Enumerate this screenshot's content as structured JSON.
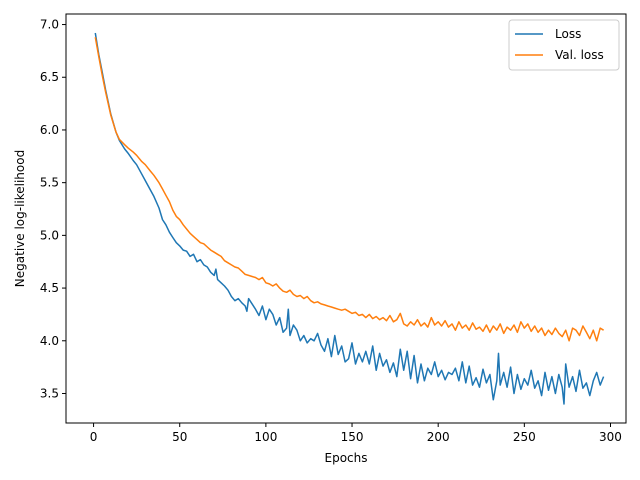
{
  "chart_data": {
    "type": "line",
    "title": "",
    "xlabel": "Epochs",
    "ylabel": "Negative log-likelihood",
    "xlim": [
      -16,
      309
    ],
    "ylim": [
      3.22,
      7.1
    ],
    "xticks": [
      0,
      50,
      100,
      150,
      200,
      250,
      300
    ],
    "yticks": [
      3.5,
      4.0,
      4.5,
      5.0,
      5.5,
      6.0,
      6.5,
      7.0
    ],
    "xtick_labels": [
      "0",
      "50",
      "100",
      "150",
      "200",
      "250",
      "300"
    ],
    "ytick_labels": [
      "3.5",
      "4.0",
      "4.5",
      "5.0",
      "5.5",
      "6.0",
      "6.5",
      "7.0"
    ],
    "grid": false,
    "legend_position": "top-right",
    "series": [
      {
        "name": "Loss",
        "color": "#1f77b4",
        "x": [
          1,
          3,
          5,
          7,
          10,
          13,
          15,
          18,
          20,
          23,
          25,
          28,
          30,
          33,
          35,
          38,
          40,
          42,
          44,
          46,
          48,
          50,
          52,
          54,
          56,
          58,
          60,
          62,
          64,
          66,
          68,
          70,
          71,
          72,
          74,
          76,
          78,
          80,
          82,
          84,
          86,
          88,
          89,
          90,
          92,
          94,
          96,
          98,
          100,
          102,
          104,
          106,
          108,
          110,
          112,
          113,
          114,
          116,
          118,
          120,
          122,
          124,
          126,
          128,
          130,
          132,
          134,
          136,
          138,
          140,
          142,
          144,
          146,
          148,
          150,
          152,
          154,
          156,
          158,
          160,
          162,
          164,
          166,
          168,
          170,
          172,
          174,
          176,
          178,
          180,
          182,
          184,
          186,
          188,
          190,
          192,
          194,
          196,
          198,
          200,
          202,
          204,
          206,
          208,
          210,
          212,
          214,
          216,
          218,
          220,
          222,
          224,
          226,
          228,
          230,
          232,
          234,
          235,
          236,
          238,
          240,
          242,
          244,
          246,
          248,
          250,
          252,
          254,
          256,
          258,
          260,
          262,
          264,
          266,
          268,
          270,
          272,
          273,
          274,
          276,
          278,
          280,
          282,
          284,
          286,
          288,
          290,
          292,
          294,
          296
        ],
        "values": [
          6.92,
          6.72,
          6.55,
          6.38,
          6.15,
          5.98,
          5.9,
          5.82,
          5.78,
          5.71,
          5.67,
          5.58,
          5.52,
          5.43,
          5.37,
          5.26,
          5.15,
          5.1,
          5.03,
          4.98,
          4.93,
          4.9,
          4.86,
          4.85,
          4.8,
          4.82,
          4.75,
          4.77,
          4.72,
          4.7,
          4.65,
          4.62,
          4.68,
          4.58,
          4.55,
          4.52,
          4.48,
          4.42,
          4.38,
          4.4,
          4.36,
          4.33,
          4.28,
          4.4,
          4.35,
          4.3,
          4.24,
          4.33,
          4.2,
          4.3,
          4.25,
          4.15,
          4.22,
          4.08,
          4.12,
          4.3,
          4.05,
          4.15,
          4.1,
          4.0,
          4.05,
          3.98,
          4.02,
          4.0,
          4.07,
          3.96,
          3.9,
          4.02,
          3.85,
          4.05,
          3.87,
          3.95,
          3.8,
          3.83,
          3.98,
          3.78,
          3.88,
          3.8,
          3.9,
          3.78,
          3.95,
          3.72,
          3.88,
          3.76,
          3.82,
          3.7,
          3.79,
          3.66,
          3.92,
          3.72,
          3.9,
          3.64,
          3.86,
          3.6,
          3.78,
          3.62,
          3.74,
          3.68,
          3.8,
          3.66,
          3.72,
          3.63,
          3.7,
          3.68,
          3.74,
          3.62,
          3.8,
          3.6,
          3.76,
          3.58,
          3.65,
          3.56,
          3.73,
          3.6,
          3.68,
          3.44,
          3.62,
          3.88,
          3.58,
          3.7,
          3.56,
          3.75,
          3.5,
          3.68,
          3.54,
          3.64,
          3.58,
          3.72,
          3.55,
          3.62,
          3.48,
          3.7,
          3.53,
          3.66,
          3.5,
          3.68,
          3.56,
          3.4,
          3.78,
          3.56,
          3.66,
          3.52,
          3.72,
          3.55,
          3.6,
          3.48,
          3.62,
          3.7,
          3.58,
          3.66
        ]
      },
      {
        "name": "Val. loss",
        "color": "#ff7f0e",
        "x": [
          1,
          3,
          5,
          7,
          10,
          13,
          15,
          18,
          20,
          23,
          25,
          28,
          30,
          33,
          35,
          38,
          40,
          42,
          44,
          46,
          48,
          50,
          52,
          54,
          56,
          58,
          60,
          62,
          64,
          66,
          68,
          70,
          72,
          74,
          76,
          78,
          80,
          82,
          84,
          86,
          88,
          90,
          92,
          94,
          96,
          98,
          100,
          102,
          104,
          106,
          108,
          110,
          112,
          114,
          116,
          118,
          120,
          122,
          124,
          126,
          128,
          130,
          132,
          134,
          136,
          138,
          140,
          142,
          144,
          146,
          148,
          150,
          152,
          154,
          156,
          158,
          160,
          162,
          164,
          166,
          168,
          170,
          172,
          174,
          176,
          178,
          180,
          182,
          184,
          186,
          188,
          190,
          192,
          194,
          196,
          198,
          200,
          202,
          204,
          206,
          208,
          210,
          212,
          214,
          216,
          218,
          220,
          222,
          224,
          226,
          228,
          230,
          232,
          234,
          236,
          238,
          240,
          242,
          244,
          246,
          248,
          250,
          252,
          254,
          256,
          258,
          260,
          262,
          264,
          266,
          268,
          270,
          272,
          274,
          276,
          278,
          280,
          282,
          284,
          286,
          288,
          290,
          292,
          294,
          296
        ],
        "values": [
          6.88,
          6.7,
          6.52,
          6.36,
          6.14,
          5.98,
          5.91,
          5.86,
          5.83,
          5.79,
          5.76,
          5.7,
          5.67,
          5.61,
          5.57,
          5.5,
          5.44,
          5.38,
          5.32,
          5.24,
          5.18,
          5.15,
          5.1,
          5.06,
          5.02,
          4.99,
          4.96,
          4.93,
          4.92,
          4.89,
          4.86,
          4.84,
          4.82,
          4.8,
          4.76,
          4.74,
          4.72,
          4.7,
          4.69,
          4.66,
          4.63,
          4.62,
          4.61,
          4.6,
          4.58,
          4.6,
          4.55,
          4.54,
          4.52,
          4.54,
          4.5,
          4.47,
          4.46,
          4.48,
          4.44,
          4.42,
          4.43,
          4.4,
          4.42,
          4.38,
          4.36,
          4.37,
          4.35,
          4.34,
          4.33,
          4.32,
          4.31,
          4.3,
          4.29,
          4.3,
          4.28,
          4.26,
          4.27,
          4.24,
          4.25,
          4.22,
          4.25,
          4.21,
          4.23,
          4.2,
          4.22,
          4.19,
          4.24,
          4.18,
          4.2,
          4.26,
          4.16,
          4.14,
          4.18,
          4.15,
          4.2,
          4.14,
          4.17,
          4.13,
          4.22,
          4.15,
          4.18,
          4.14,
          4.19,
          4.13,
          4.16,
          4.1,
          4.18,
          4.12,
          4.15,
          4.1,
          4.17,
          4.11,
          4.13,
          4.09,
          4.15,
          4.08,
          4.14,
          4.1,
          4.16,
          4.07,
          4.13,
          4.1,
          4.15,
          4.08,
          4.18,
          4.12,
          4.16,
          4.09,
          4.14,
          4.08,
          4.12,
          4.05,
          4.1,
          4.06,
          4.12,
          4.07,
          4.04,
          4.1,
          4.0,
          4.12,
          4.1,
          4.05,
          4.14,
          4.08,
          4.02,
          4.1,
          4.0,
          4.12,
          4.1
        ]
      }
    ]
  }
}
